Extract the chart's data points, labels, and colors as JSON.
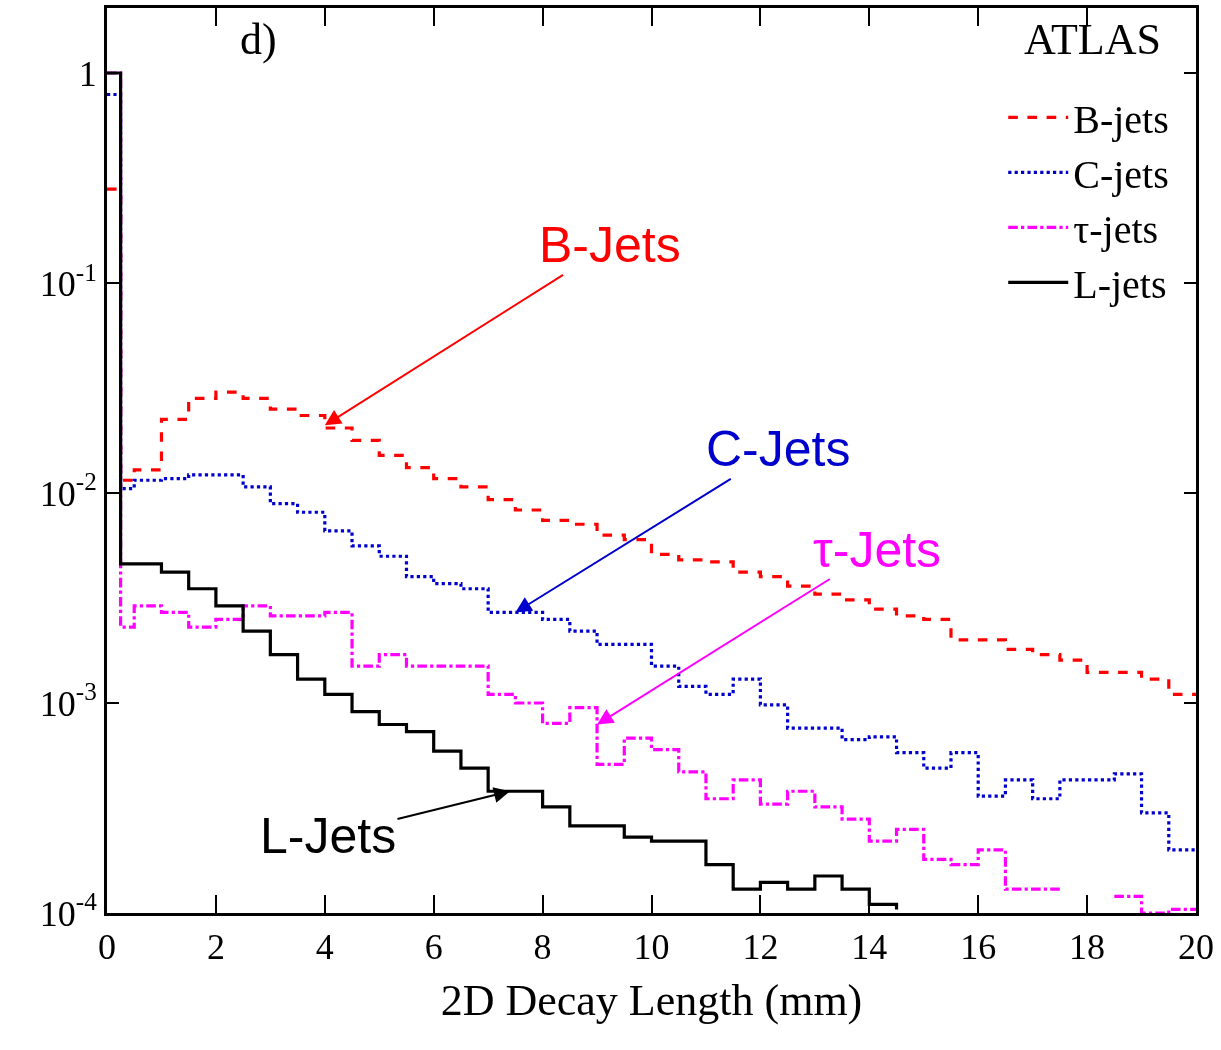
{
  "chart_data": {
    "type": "step",
    "xlabel": "2D Decay Length (mm)",
    "x": [
      0,
      0.25,
      0.5,
      1,
      1.5,
      2,
      2.5,
      3,
      3.5,
      4,
      4.5,
      5,
      5.5,
      6,
      6.5,
      7,
      7.5,
      8,
      8.5,
      9,
      9.5,
      10,
      10.5,
      11,
      11.5,
      12,
      12.5,
      13,
      13.5,
      14,
      14.5,
      15,
      15.5,
      16,
      16.5,
      17,
      17.5,
      18,
      18.5,
      19,
      19.5,
      20
    ],
    "series": [
      {
        "name": "B-jets",
        "color": "#ff0000",
        "line_style": "dashed",
        "values": [
          0.28,
          0.0115,
          0.0129,
          0.0224,
          0.0282,
          0.0302,
          0.0282,
          0.0251,
          0.0234,
          0.0204,
          0.0178,
          0.0151,
          0.0132,
          0.0117,
          0.0107,
          0.0093,
          0.0083,
          0.0074,
          0.0071,
          0.0063,
          0.006,
          0.0051,
          0.0048,
          0.0047,
          0.0042,
          0.004,
          0.0036,
          0.0033,
          0.0031,
          0.0028,
          0.0026,
          0.0025,
          0.002,
          0.002,
          0.0018,
          0.0017,
          0.0016,
          0.0014,
          0.0014,
          0.0013,
          0.0011,
          0.0011
        ]
      },
      {
        "name": "C-jets",
        "color": "#0000cc",
        "line_style": "dotted",
        "values": [
          0.79,
          0.0105,
          0.0115,
          0.0117,
          0.0122,
          0.0122,
          0.0107,
          0.0089,
          0.0081,
          0.0066,
          0.0056,
          0.005,
          0.004,
          0.0037,
          0.0035,
          0.0027,
          0.0027,
          0.0025,
          0.0022,
          0.0019,
          0.0019,
          0.0015,
          0.0012,
          0.0011,
          0.0013,
          0.00098,
          0.00076,
          0.00076,
          0.00067,
          0.00069,
          0.00058,
          0.00049,
          0.00058,
          0.00036,
          0.00043,
          0.00035,
          0.00043,
          0.00043,
          0.00046,
          0.0003,
          0.0002,
          0.0002
        ]
      },
      {
        "name": "τ-jets",
        "color": "#ff00ff",
        "line_style": "dashdot",
        "values": [
          1,
          0.0023,
          0.0029,
          0.0027,
          0.0023,
          0.0025,
          0.0029,
          0.0026,
          0.0026,
          0.0027,
          0.0015,
          0.0017,
          0.0015,
          0.0015,
          0.0015,
          0.0011,
          0.001,
          0.0008,
          0.00095,
          0.00051,
          0.00068,
          0.0006,
          0.00047,
          0.00035,
          0.00043,
          0.00033,
          0.00038,
          0.00032,
          0.00028,
          0.00022,
          0.00025,
          0.00018,
          0.00017,
          0.0002,
          0.00013,
          0.00013,
          0.00013,
          null,
          0.00012,
          0.0001,
          0.000104,
          0.000104
        ]
      },
      {
        "name": "L-jets",
        "color": "#000000",
        "line_style": "solid",
        "values": [
          1,
          0.0046,
          0.0046,
          0.0042,
          0.0035,
          0.0029,
          0.0022,
          0.0017,
          0.0013,
          0.0011,
          0.00091,
          0.00079,
          0.00073,
          0.00059,
          0.00049,
          0.00038,
          0.00038,
          0.00032,
          0.00026,
          0.00026,
          0.00023,
          0.00022,
          0.00022,
          0.00017,
          0.00013,
          0.00014,
          0.00013,
          0.00015,
          0.00013,
          0.00011,
          0.000104,
          null,
          null,
          null,
          null,
          null,
          null,
          null,
          null,
          null,
          null,
          null
        ]
      }
    ],
    "xlim": [
      0,
      20
    ],
    "xticks": [
      0,
      2,
      4,
      6,
      8,
      10,
      12,
      14,
      16,
      18,
      20
    ],
    "ylim": [
      0.0001,
      2.04
    ],
    "log": true,
    "yticks": [
      1,
      {
        "value": 0.1,
        "label": "10$^{-1}$"
      },
      {
        "value": 0.01,
        "label": "10$^{-2}$"
      },
      {
        "value": 0.001,
        "label": "10$^{-3}$"
      },
      {
        "value": 0.0001,
        "label": "10$^{-4}$"
      }
    ],
    "grid": false,
    "legend": "top right",
    "annotations": [
      "d)",
      "ATLAS",
      {
        "text": "B-Jets",
        "x": 4.0,
        "y": 0.021
      },
      {
        "text": "C-Jets",
        "x": 7.5,
        "y": 0.0027
      },
      {
        "text": "τ-Jets",
        "x": 9,
        "y": 0.00079
      },
      {
        "text": "L-Jets",
        "x": 7.4,
        "y": 0.00038
      }
    ]
  }
}
